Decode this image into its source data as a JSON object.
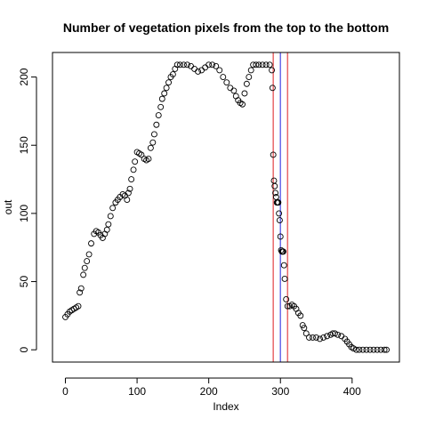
{
  "chart_data": {
    "type": "scatter",
    "title": "Number of vegetation pixels from the top to the bottom",
    "xlabel": "Index",
    "ylabel": "out",
    "xlim": [
      -18,
      466
    ],
    "ylim": [
      -9,
      218
    ],
    "x_ticks": [
      0,
      100,
      200,
      300,
      400
    ],
    "x_tick_labels": [
      "0",
      "100",
      "200",
      "300",
      "400"
    ],
    "y_ticks": [
      0,
      50,
      100,
      150,
      200
    ],
    "y_tick_labels": [
      "0",
      "50",
      "100",
      "150",
      "200"
    ],
    "grid": false,
    "legend": "none",
    "marker": "open-circle",
    "series": [
      {
        "points": [
          [
            0,
            24
          ],
          [
            3,
            26
          ],
          [
            6,
            28
          ],
          [
            9,
            29
          ],
          [
            12,
            30
          ],
          [
            15,
            31
          ],
          [
            18,
            32
          ],
          [
            20,
            42
          ],
          [
            22,
            45
          ],
          [
            25,
            55
          ],
          [
            27,
            60
          ],
          [
            30,
            65
          ],
          [
            33,
            70
          ],
          [
            36,
            78
          ],
          [
            40,
            85
          ],
          [
            43,
            87
          ],
          [
            46,
            86
          ],
          [
            49,
            84
          ],
          [
            52,
            82
          ],
          [
            55,
            85
          ],
          [
            58,
            88
          ],
          [
            60,
            92
          ],
          [
            63,
            98
          ],
          [
            66,
            104
          ],
          [
            70,
            108
          ],
          [
            73,
            110
          ],
          [
            76,
            112
          ],
          [
            80,
            114
          ],
          [
            83,
            113
          ],
          [
            86,
            110
          ],
          [
            88,
            115
          ],
          [
            90,
            118
          ],
          [
            92,
            125
          ],
          [
            95,
            132
          ],
          [
            97,
            138
          ],
          [
            100,
            145
          ],
          [
            103,
            144
          ],
          [
            106,
            143
          ],
          [
            110,
            140
          ],
          [
            113,
            139
          ],
          [
            116,
            140
          ],
          [
            119,
            148
          ],
          [
            122,
            152
          ],
          [
            124,
            158
          ],
          [
            127,
            165
          ],
          [
            130,
            172
          ],
          [
            133,
            178
          ],
          [
            135,
            184
          ],
          [
            138,
            188
          ],
          [
            141,
            192
          ],
          [
            144,
            196
          ],
          [
            147,
            200
          ],
          [
            150,
            202
          ],
          [
            153,
            206
          ],
          [
            156,
            209
          ],
          [
            160,
            209
          ],
          [
            165,
            209
          ],
          [
            170,
            209
          ],
          [
            175,
            208
          ],
          [
            180,
            206
          ],
          [
            185,
            204
          ],
          [
            190,
            205
          ],
          [
            195,
            207
          ],
          [
            200,
            209
          ],
          [
            205,
            209
          ],
          [
            210,
            208
          ],
          [
            215,
            205
          ],
          [
            220,
            200
          ],
          [
            225,
            196
          ],
          [
            230,
            192
          ],
          [
            235,
            190
          ],
          [
            238,
            186
          ],
          [
            241,
            183
          ],
          [
            244,
            181
          ],
          [
            247,
            180
          ],
          [
            250,
            188
          ],
          [
            253,
            195
          ],
          [
            256,
            200
          ],
          [
            259,
            205
          ],
          [
            262,
            209
          ],
          [
            266,
            209
          ],
          [
            270,
            209
          ],
          [
            275,
            209
          ],
          [
            280,
            209
          ],
          [
            285,
            209
          ],
          [
            288,
            205
          ],
          [
            289,
            192
          ],
          [
            290,
            143
          ],
          [
            291,
            124
          ],
          [
            292,
            120
          ],
          [
            293,
            115
          ],
          [
            294,
            112
          ],
          [
            295,
            108
          ],
          [
            296,
            108
          ],
          [
            297,
            108
          ],
          [
            298,
            100
          ],
          [
            299,
            95
          ],
          [
            300,
            83
          ],
          [
            301,
            73
          ],
          [
            302,
            72
          ],
          [
            303,
            72
          ],
          [
            304,
            72
          ],
          [
            305,
            62
          ],
          [
            306,
            52
          ],
          [
            308,
            37
          ],
          [
            310,
            32
          ],
          [
            313,
            32
          ],
          [
            316,
            33
          ],
          [
            319,
            32
          ],
          [
            322,
            30
          ],
          [
            325,
            27
          ],
          [
            328,
            25
          ],
          [
            331,
            18
          ],
          [
            333,
            16
          ],
          [
            336,
            12
          ],
          [
            340,
            9
          ],
          [
            345,
            9
          ],
          [
            350,
            9
          ],
          [
            355,
            8
          ],
          [
            360,
            9
          ],
          [
            365,
            10
          ],
          [
            370,
            11
          ],
          [
            373,
            12
          ],
          [
            376,
            12
          ],
          [
            380,
            11
          ],
          [
            385,
            10
          ],
          [
            390,
            8
          ],
          [
            393,
            6
          ],
          [
            396,
            4
          ],
          [
            399,
            2
          ],
          [
            402,
            1
          ],
          [
            406,
            0
          ],
          [
            410,
            0
          ],
          [
            415,
            0
          ],
          [
            420,
            0
          ],
          [
            425,
            0
          ],
          [
            430,
            0
          ],
          [
            435,
            0
          ],
          [
            440,
            0
          ],
          [
            445,
            0
          ],
          [
            448,
            0
          ]
        ]
      }
    ],
    "vlines": [
      {
        "x": 290,
        "color": "#e8686a"
      },
      {
        "x": 300,
        "color": "#6b6bea"
      },
      {
        "x": 310,
        "color": "#e8686a"
      }
    ]
  }
}
